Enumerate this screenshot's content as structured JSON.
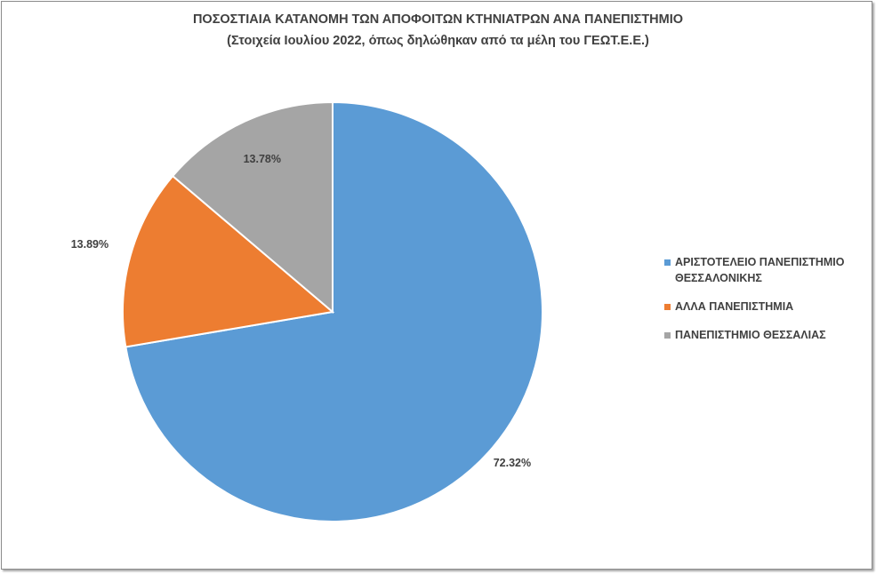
{
  "chart_data": {
    "type": "pie",
    "title": "ΠΟΣΟΣΤΙΑΙΑ ΚΑΤΑΝΟΜΗ ΤΩΝ ΑΠΟΦΟΙΤΩΝ ΚΤΗΝΙΑΤΡΩΝ ΑΝΑ ΠΑΝΕΠΙΣΤΗΜΙΟ",
    "subtitle": "(Στοιχεία Ιουλίου 2022, όπως δηλώθηκαν από τα μέλη του ΓΕΩΤ.Ε.Ε.)",
    "categories": [
      "ΑΡΙΣΤΟΤΕΛΕΙΟ ΠΑΝΕΠΙΣΤΗΜΙΟ ΘΕΣΣΑΛΟΝΙΚΗΣ",
      "ΑΛΛΑ ΠΑΝΕΠΙΣΤΗΜΙΑ",
      "ΠΑΝΕΠΙΣΤΗΜΙΟ ΘΕΣΣΑΛΙΑΣ"
    ],
    "values": [
      72.32,
      13.89,
      13.78
    ],
    "data_labels": [
      "72.32%",
      "13.89%",
      "13.78%"
    ],
    "colors": [
      "#5b9bd5",
      "#ed7d31",
      "#a5a5a5"
    ],
    "legend_position": "right"
  }
}
